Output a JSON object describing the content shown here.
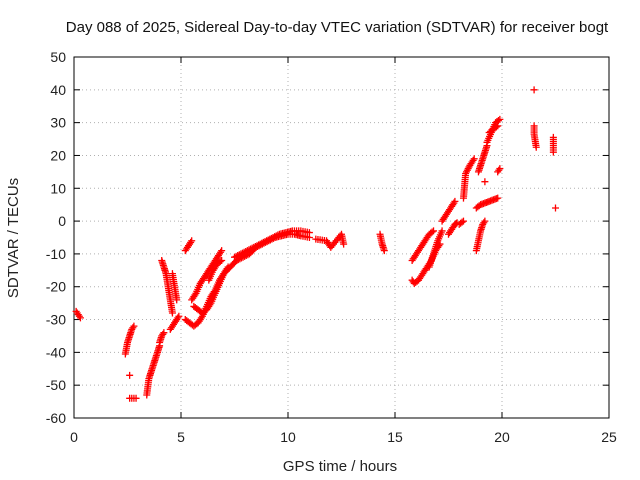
{
  "chart_data": {
    "type": "scatter",
    "title": "Day 088 of 2025, Sidereal Day-to-day VTEC variation (SDTVAR) for receiver bogt",
    "xlabel": "GPS time / hours",
    "ylabel": "SDTVAR / TECUs",
    "xlim": [
      0,
      25
    ],
    "ylim": [
      -60,
      50
    ],
    "xticks": [
      0,
      5,
      10,
      15,
      20,
      25
    ],
    "yticks": [
      -60,
      -50,
      -40,
      -30,
      -20,
      -10,
      0,
      10,
      20,
      30,
      40,
      50
    ],
    "grid": true,
    "marker": "+",
    "color": "#ff0000",
    "segments": [
      {
        "x": [
          0.1,
          0.2,
          0.3
        ],
        "y": [
          -27.5,
          -28.5,
          -29.5
        ]
      },
      {
        "x": [
          2.4,
          2.5,
          2.6,
          2.7,
          2.8
        ],
        "y": [
          -40.5,
          -37,
          -35,
          -33,
          -32
        ]
      },
      {
        "x": [
          2.6
        ],
        "y": [
          -47
        ]
      },
      {
        "x": [
          2.6,
          2.9
        ],
        "y": [
          -54,
          -54
        ]
      },
      {
        "x": [
          3.4,
          3.5,
          3.6,
          3.7,
          3.8,
          3.9,
          4.0
        ],
        "y": [
          -53,
          -48,
          -46,
          -44,
          -42,
          -40,
          -38
        ]
      },
      {
        "x": [
          4.0,
          4.1,
          4.2
        ],
        "y": [
          -37,
          -35,
          -34
        ]
      },
      {
        "x": [
          4.1,
          4.2,
          4.3,
          4.4,
          4.5,
          4.6
        ],
        "y": [
          -12,
          -14,
          -16,
          -20,
          -24,
          -28
        ]
      },
      {
        "x": [
          4.5,
          4.7,
          4.9
        ],
        "y": [
          -33,
          -31,
          -29
        ]
      },
      {
        "x": [
          4.6,
          4.8
        ],
        "y": [
          -16,
          -24
        ]
      },
      {
        "x": [
          5.2,
          5.4,
          5.5
        ],
        "y": [
          -9,
          -7,
          -6
        ]
      },
      {
        "x": [
          5.2,
          5.4,
          5.6,
          5.8,
          6.0,
          6.2,
          6.4,
          6.6,
          6.8,
          7.0,
          7.3,
          7.6,
          7.9,
          8.2,
          8.5,
          8.8,
          9.1,
          9.4,
          9.7,
          10.0,
          10.3,
          10.6,
          11.0
        ],
        "y": [
          -30,
          -31,
          -32,
          -31,
          -29,
          -26,
          -23,
          -21,
          -18,
          -16,
          -14,
          -12,
          -11,
          -10,
          -8,
          -7,
          -6,
          -5,
          -4.5,
          -4,
          -4,
          -4.5,
          -5
        ]
      },
      {
        "x": [
          5.6,
          5.8,
          6.0,
          6.2,
          6.4,
          6.6,
          6.8,
          7.0,
          7.2
        ],
        "y": [
          -26,
          -27,
          -28,
          -27,
          -25,
          -22,
          -19,
          -16,
          -14
        ]
      },
      {
        "x": [
          5.5,
          5.7,
          5.9,
          6.1,
          6.3,
          6.5,
          6.7,
          6.9
        ],
        "y": [
          -24,
          -22,
          -19,
          -17,
          -15,
          -13,
          -11,
          -9
        ]
      },
      {
        "x": [
          6.3,
          6.5,
          6.7,
          6.9
        ],
        "y": [
          -18,
          -15,
          -13,
          -12
        ]
      },
      {
        "x": [
          7.5,
          7.8,
          8.1,
          8.4,
          8.7,
          9.0,
          9.3,
          9.6,
          9.9,
          10.2,
          10.6,
          11.0
        ],
        "y": [
          -11,
          -10,
          -9,
          -8,
          -7,
          -6,
          -5,
          -4,
          -3.5,
          -3,
          -3,
          -3.5
        ]
      },
      {
        "x": [
          11.3,
          11.8,
          12.0,
          12.5,
          12.6
        ],
        "y": [
          -5.5,
          -6,
          -8,
          -4,
          -7
        ]
      },
      {
        "x": [
          14.3,
          14.4,
          14.5
        ],
        "y": [
          -4,
          -7,
          -9
        ]
      },
      {
        "x": [
          15.8,
          16.0,
          16.2,
          16.4,
          16.6,
          16.8
        ],
        "y": [
          -12,
          -10,
          -8,
          -6,
          -4,
          -3
        ]
      },
      {
        "x": [
          15.8,
          15.9,
          16.1,
          16.3,
          16.5,
          16.7,
          16.9,
          17.1
        ],
        "y": [
          -18,
          -19,
          -18,
          -16,
          -14,
          -12,
          -9,
          -7
        ]
      },
      {
        "x": [
          16.6,
          16.8,
          17.0,
          17.2
        ],
        "y": [
          -14,
          -10,
          -6,
          -3
        ]
      },
      {
        "x": [
          17.2,
          17.4,
          17.6,
          17.8
        ],
        "y": [
          0,
          2,
          4,
          6
        ]
      },
      {
        "x": [
          17.5,
          17.6,
          17.7,
          17.8,
          17.9
        ],
        "y": [
          -4,
          -3,
          -2,
          -1,
          -0.5
        ]
      },
      {
        "x": [
          18.2,
          18.3,
          18.5,
          18.7
        ],
        "y": [
          7,
          14.5,
          17,
          19
        ]
      },
      {
        "x": [
          18.0,
          18.2
        ],
        "y": [
          -1,
          0
        ]
      },
      {
        "x": [
          18.8,
          18.9,
          19.0,
          19.1,
          19.2
        ],
        "y": [
          -9,
          -6,
          -3,
          -1,
          0
        ]
      },
      {
        "x": [
          18.8,
          19.0,
          19.2,
          19.4,
          19.6,
          19.8
        ],
        "y": [
          4,
          5,
          5.5,
          6,
          6.5,
          7
        ]
      },
      {
        "x": [
          18.9,
          19.0,
          19.1,
          19.2,
          19.3
        ],
        "y": [
          15,
          17,
          19,
          21,
          23
        ]
      },
      {
        "x": [
          19.2
        ],
        "y": [
          12
        ]
      },
      {
        "x": [
          19.3,
          19.5,
          19.7,
          19.9
        ],
        "y": [
          24,
          27,
          30,
          31
        ]
      },
      {
        "x": [
          19.4,
          19.6,
          19.8
        ],
        "y": [
          27,
          28,
          29
        ]
      },
      {
        "x": [
          19.8,
          19.9
        ],
        "y": [
          15,
          16
        ]
      },
      {
        "x": [
          21.5
        ],
        "y": [
          40
        ]
      },
      {
        "x": [
          21.5,
          21.5,
          21.6
        ],
        "y": [
          29,
          26.5,
          22.5
        ]
      },
      {
        "x": [
          22.4,
          22.4,
          22.4
        ],
        "y": [
          25.5,
          23,
          21
        ]
      },
      {
        "x": [
          22.5
        ],
        "y": [
          4
        ]
      }
    ]
  }
}
